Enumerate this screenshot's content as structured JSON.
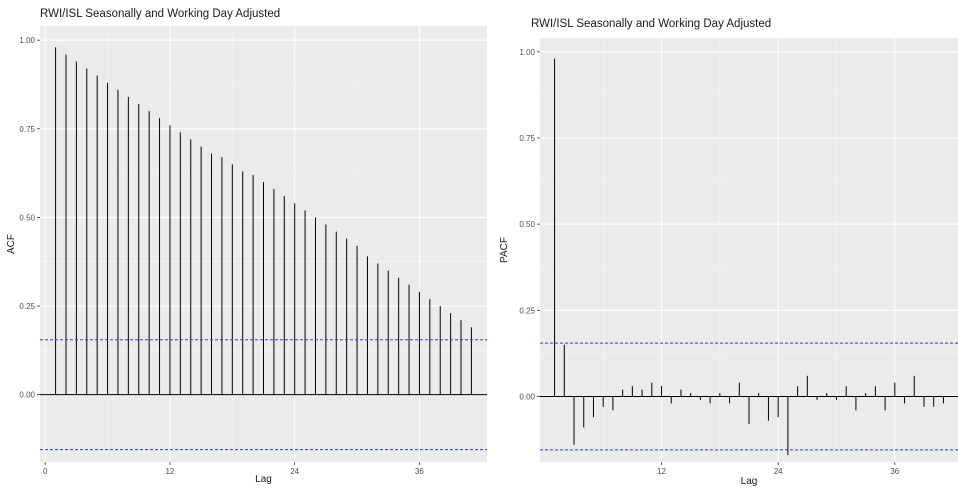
{
  "chart_data": [
    {
      "type": "bar",
      "subtype": "acf",
      "title": "RWI/ISL Seasonally and Working Day Adjusted",
      "xlabel": "Lag",
      "ylabel": "ACF",
      "x_ticks": [
        0,
        12,
        24,
        36
      ],
      "x_tick_labels": [
        "0",
        "12",
        "24",
        "36"
      ],
      "y_ticks": [
        0.0,
        0.25,
        0.5,
        0.75,
        1.0
      ],
      "y_tick_labels": [
        "0.00",
        "0.25",
        "0.50",
        "0.75",
        "1.00"
      ],
      "xlim": [
        -0.5,
        42.5
      ],
      "ylim": [
        -0.19,
        1.04
      ],
      "lags": [
        1,
        2,
        3,
        4,
        5,
        6,
        7,
        8,
        9,
        10,
        11,
        12,
        13,
        14,
        15,
        16,
        17,
        18,
        19,
        20,
        21,
        22,
        23,
        24,
        25,
        26,
        27,
        28,
        29,
        30,
        31,
        32,
        33,
        34,
        35,
        36,
        37,
        38,
        39,
        40,
        41
      ],
      "values": [
        0.98,
        0.96,
        0.94,
        0.92,
        0.9,
        0.88,
        0.86,
        0.84,
        0.82,
        0.8,
        0.78,
        0.76,
        0.74,
        0.72,
        0.7,
        0.68,
        0.67,
        0.65,
        0.63,
        0.62,
        0.6,
        0.58,
        0.56,
        0.54,
        0.52,
        0.5,
        0.48,
        0.46,
        0.44,
        0.42,
        0.39,
        0.37,
        0.35,
        0.33,
        0.31,
        0.29,
        0.27,
        0.25,
        0.23,
        0.21,
        0.19
      ],
      "ci": 0.155,
      "grid": true,
      "colors": {
        "spike": "#000000",
        "ci": "#2e3fc7",
        "panel": "#ebebeb"
      }
    },
    {
      "type": "bar",
      "subtype": "pacf",
      "title": "RWI/ISL Seasonally and Working Day Adjusted",
      "xlabel": "Lag",
      "ylabel": "PACF",
      "x_ticks": [
        12,
        24,
        36
      ],
      "x_tick_labels": [
        "12",
        "24",
        "36"
      ],
      "y_ticks": [
        0.0,
        0.25,
        0.5,
        0.75,
        1.0
      ],
      "y_tick_labels": [
        "0.00",
        "0.25",
        "0.50",
        "0.75",
        "1.00"
      ],
      "xlim": [
        -0.5,
        42.5
      ],
      "ylim": [
        -0.19,
        1.04
      ],
      "lags": [
        1,
        2,
        3,
        4,
        5,
        6,
        7,
        8,
        9,
        10,
        11,
        12,
        13,
        14,
        15,
        16,
        17,
        18,
        19,
        20,
        21,
        22,
        23,
        24,
        25,
        26,
        27,
        28,
        29,
        30,
        31,
        32,
        33,
        34,
        35,
        36,
        37,
        38,
        39,
        40,
        41
      ],
      "values": [
        0.98,
        0.15,
        -0.14,
        -0.09,
        -0.06,
        -0.03,
        -0.04,
        0.02,
        0.03,
        0.02,
        0.04,
        0.03,
        -0.02,
        0.02,
        0.01,
        -0.01,
        -0.02,
        0.01,
        -0.02,
        0.04,
        -0.08,
        0.01,
        -0.07,
        -0.06,
        -0.17,
        0.03,
        0.06,
        -0.01,
        0.01,
        -0.01,
        0.03,
        -0.04,
        0.01,
        0.03,
        -0.04,
        0.04,
        -0.02,
        0.06,
        -0.03,
        -0.03,
        -0.02
      ],
      "ci": 0.155,
      "grid": true,
      "colors": {
        "spike": "#000000",
        "ci": "#2e3fc7",
        "panel": "#ebebeb"
      }
    }
  ]
}
